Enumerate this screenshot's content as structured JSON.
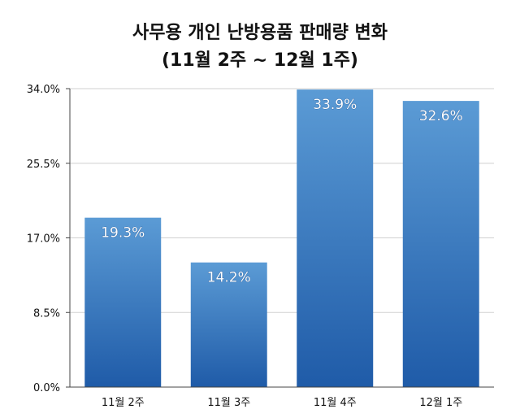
{
  "chart_data": {
    "type": "bar",
    "title": "사무용 개인 난방용품 판매량 변화",
    "subtitle": "(11월 2주 ~ 12월 1주)",
    "categories": [
      "11월 2주",
      "11월 3주",
      "11월 4주",
      "12월 1주"
    ],
    "values": [
      19.3,
      14.2,
      33.9,
      32.6
    ],
    "data_labels": [
      "19.3%",
      "14.2%",
      "33.9%",
      "32.6%"
    ],
    "yticks": [
      "0.0%",
      "8.5%",
      "17.0%",
      "25.5%",
      "34.0%"
    ],
    "ylim": [
      0,
      34
    ],
    "grid": true,
    "legend": "none",
    "bar_color_top": "#5b9bd5",
    "bar_color_bottom": "#1f5ba8"
  }
}
